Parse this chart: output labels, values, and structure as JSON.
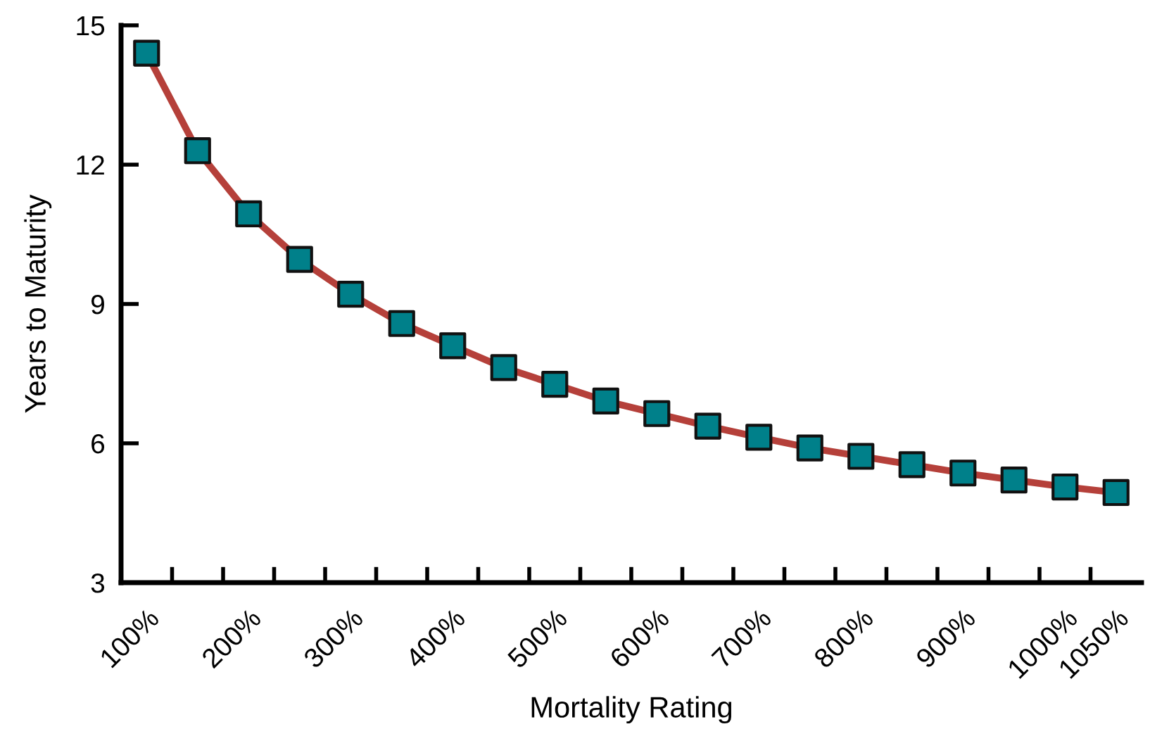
{
  "chart_data": {
    "type": "line",
    "xlabel": "Mortality Rating",
    "ylabel": "Years to Maturity",
    "categories": [
      "100%",
      null,
      "200%",
      null,
      "300%",
      null,
      "400%",
      null,
      "500%",
      null,
      "600%",
      null,
      "700%",
      null,
      "800%",
      null,
      "900%",
      null,
      "1000%",
      "1050%"
    ],
    "series": [
      {
        "color": "#b5403a",
        "colors": [
          "#00808a",
          "#00808a",
          "#00808a",
          "#00808a",
          "#00808a",
          "#00808a",
          "#00808a",
          "#00808a",
          "#00808a",
          "#00808a",
          "#00808a",
          "#00808a",
          "#00808a",
          "#00808a",
          "#00808a",
          "#00808a",
          "#00808a",
          "#00808a",
          "#00808a",
          "#00808a"
        ],
        "values": [
          14.4,
          12.3,
          10.94,
          9.96,
          9.21,
          8.58,
          8.1,
          7.63,
          7.27,
          6.91,
          6.64,
          6.37,
          6.13,
          5.9,
          5.72,
          5.54,
          5.36,
          5.21,
          5.06,
          4.94
        ]
      }
    ],
    "marker": "square",
    "line_style": "solid",
    "ylim": [
      3,
      15
    ],
    "yticks": [
      3,
      6,
      9,
      12,
      15
    ],
    "grid": false
  }
}
